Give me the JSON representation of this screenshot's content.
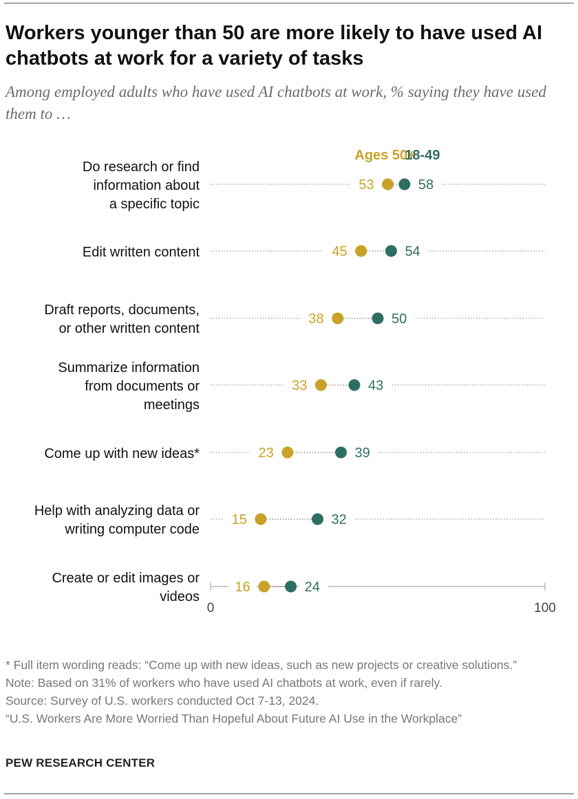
{
  "title": "Workers younger than 50 are more likely to have used AI chatbots at work for a variety of tasks",
  "subtitle": "Among employed adults who have used AI chatbots at work, % saying they have used them to …",
  "colors": {
    "ages_50_plus": "#C9A227",
    "ages_18_49": "#2F6E62",
    "dotted_line": "#999999",
    "axis": "#aaaaaa"
  },
  "chart_data": {
    "type": "dot-plot",
    "title": "Workers younger than 50 are more likely to have used AI chatbots at work for a variety of tasks",
    "xlim": [
      0,
      100
    ],
    "x_ticks": [
      "0",
      "100"
    ],
    "legend": [
      "Ages 50+",
      "18-49"
    ],
    "categories": [
      "Do research or find information about a specific topic",
      "Edit written content",
      "Draft reports, documents, or other written content",
      "Summarize information from documents or meetings",
      "Come up with new ideas*",
      "Help with analyzing data or writing computer code",
      "Create or edit images or videos"
    ],
    "category_lines": [
      [
        "Do research or find",
        "information about",
        "a specific topic"
      ],
      [
        "Edit written content"
      ],
      [
        "Draft reports, documents,",
        "or other written content"
      ],
      [
        "Summarize information",
        "from documents or",
        "meetings"
      ],
      [
        "Come up with new ideas*"
      ],
      [
        "Help with analyzing data or",
        "writing computer code"
      ],
      [
        "Create or edit images or",
        "videos"
      ]
    ],
    "series": [
      {
        "name": "Ages 50+",
        "values": [
          53,
          45,
          38,
          33,
          23,
          15,
          16
        ]
      },
      {
        "name": "18-49",
        "values": [
          58,
          54,
          50,
          43,
          39,
          32,
          24
        ]
      }
    ]
  },
  "footnotes": {
    "full_wording": "* Full item wording reads: “Come up with new ideas, such as new projects or creative solutions.”",
    "note": "Note: Based on 31% of workers who have used AI chatbots at work, even if rarely.",
    "source": "Source: Survey of U.S. workers conducted Oct 7-13, 2024.",
    "report": "“U.S. Workers Are More Worried Than Hopeful About Future AI Use in the Workplace”"
  },
  "brand": "PEW RESEARCH CENTER"
}
